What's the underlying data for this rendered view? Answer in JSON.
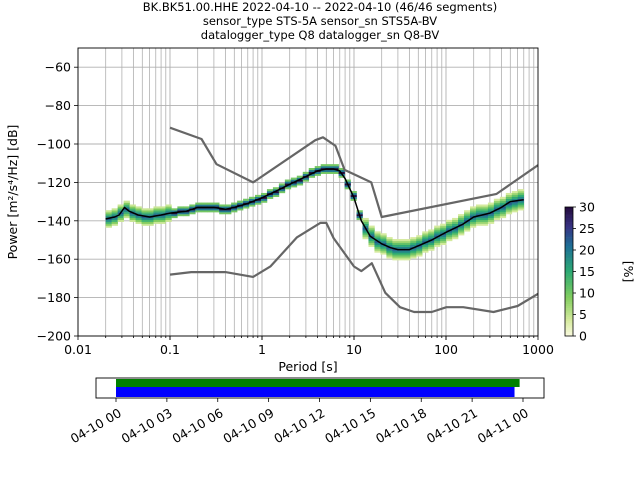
{
  "title_lines": [
    "BK.BK51.00.HHE   2022-04-10 -- 2022-04-10  (46/46 segments)",
    "sensor_type STS-5A sensor_sn STS5A-BV",
    "datalogger_type Q8 datalogger_sn Q8-BV"
  ],
  "chart_data": {
    "type": "heatmap",
    "xlabel": "Period [s]",
    "ylabel": "Power [m²/s⁴/Hz] [dB]",
    "xscale": "log",
    "xlim": [
      0.01,
      1000
    ],
    "ylim": [
      -200,
      -50
    ],
    "x_ticks": [
      {
        "v": 0.01,
        "label": "0.01"
      },
      {
        "v": 0.1,
        "label": "0.1"
      },
      {
        "v": 1,
        "label": "1"
      },
      {
        "v": 10,
        "label": "10"
      },
      {
        "v": 100,
        "label": "100"
      },
      {
        "v": 1000,
        "label": "1000"
      }
    ],
    "y_ticks": [
      {
        "v": -60,
        "label": "−60"
      },
      {
        "v": -80,
        "label": "−80"
      },
      {
        "v": -100,
        "label": "−100"
      },
      {
        "v": -120,
        "label": "−120"
      },
      {
        "v": -140,
        "label": "−140"
      },
      {
        "v": -160,
        "label": "−160"
      },
      {
        "v": -180,
        "label": "−180"
      },
      {
        "v": -200,
        "label": "−200"
      }
    ],
    "grid": true,
    "nhnm": {
      "x": [
        0.1,
        0.22,
        0.32,
        0.8,
        3.8,
        4.6,
        6.3,
        7.9,
        15.4,
        20,
        354.8,
        1000
      ],
      "y": [
        -91.5,
        -97.4,
        -110.5,
        -120,
        -98,
        -96.5,
        -101,
        -113.5,
        -120,
        -138,
        -126,
        -111
      ]
    },
    "nlnm": {
      "x": [
        0.1,
        0.17,
        0.4,
        0.8,
        1.24,
        2.4,
        4.3,
        5,
        6,
        10,
        12,
        15.6,
        21.9,
        31.6,
        45,
        70,
        101,
        154,
        328,
        600,
        1000
      ],
      "y": [
        -168,
        -166.7,
        -166.7,
        -169.2,
        -163.7,
        -148.6,
        -141.1,
        -141.1,
        -149,
        -163.8,
        -166.2,
        -162.1,
        -177.5,
        -185,
        -187.5,
        -187.5,
        -185,
        -185,
        -187.5,
        -184.4,
        -178
      ]
    },
    "mode": {
      "x": [
        0.02,
        0.025,
        0.028,
        0.032,
        0.036,
        0.045,
        0.06,
        0.08,
        0.1,
        0.15,
        0.2,
        0.3,
        0.4,
        0.5,
        0.7,
        1,
        1.5,
        2,
        3,
        4,
        5,
        6,
        7,
        8,
        10,
        12,
        15,
        20,
        25,
        30,
        40,
        50,
        70,
        100,
        150,
        200,
        300,
        400,
        500,
        700
      ],
      "y": [
        -139,
        -138,
        -137,
        -133,
        -135,
        -137,
        -138,
        -137,
        -136,
        -135,
        -133,
        -133,
        -134,
        -133,
        -131,
        -128,
        -124,
        -121,
        -117,
        -114,
        -113,
        -113,
        -114,
        -118,
        -128,
        -140,
        -148,
        -152,
        -154,
        -155,
        -155,
        -153,
        -150,
        -146,
        -142,
        -138,
        -136,
        -133,
        -130,
        -129
      ]
    },
    "colorbar": {
      "label": "[%]",
      "range": [
        0,
        30
      ],
      "ticks": [
        {
          "v": 0,
          "label": "0"
        },
        {
          "v": 5,
          "label": "5"
        },
        {
          "v": 10,
          "label": "10"
        },
        {
          "v": 15,
          "label": "15"
        },
        {
          "v": 20,
          "label": "20"
        },
        {
          "v": 25,
          "label": "25"
        },
        {
          "v": 30,
          "label": "30"
        }
      ]
    },
    "timeline": {
      "tick_labels": [
        "04-10 00",
        "04-10 03",
        "04-10 06",
        "04-10 09",
        "04-10 12",
        "04-10 15",
        "04-10 18",
        "04-10 21",
        "04-11 00"
      ],
      "green_bar_hours": [
        0,
        23.8
      ],
      "blue_bar_hours": [
        0,
        23.5
      ]
    }
  }
}
